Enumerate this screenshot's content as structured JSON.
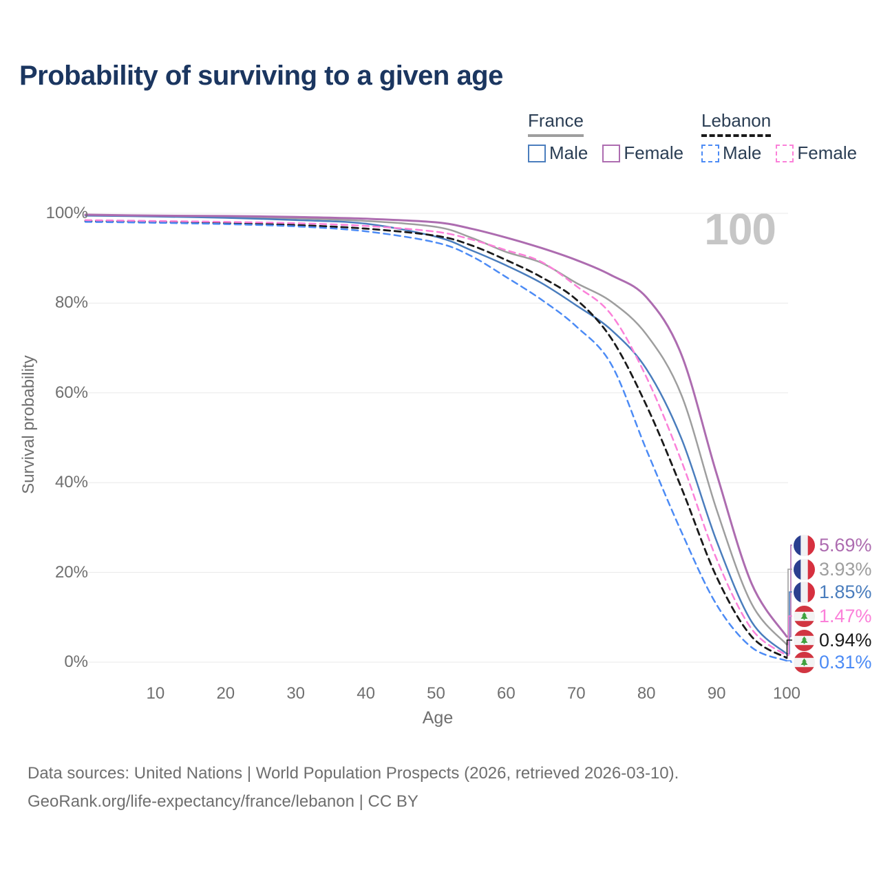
{
  "title": "Probability of surviving to a given age",
  "watermark_age": "100",
  "legend": {
    "groups": [
      {
        "country": "France",
        "line_style": "solid",
        "line_color": "#9e9e9e",
        "items": [
          {
            "label": "Male",
            "color": "#4a7dbd",
            "style": "solid"
          },
          {
            "label": "Female",
            "color": "#ad6cb0",
            "style": "solid"
          }
        ]
      },
      {
        "country": "Lebanon",
        "line_style": "dashed",
        "line_color": "#1a1a1a",
        "items": [
          {
            "label": "Male",
            "color": "#4c8bf5",
            "style": "dashed"
          },
          {
            "label": "Female",
            "color": "#fb80d9",
            "style": "dashed"
          }
        ]
      }
    ]
  },
  "chart_data": {
    "type": "line",
    "title": "Probability of surviving to a given age",
    "xlabel": "Age",
    "ylabel": "Survival probability",
    "xlim": [
      0,
      100
    ],
    "ylim": [
      0,
      100
    ],
    "grid": "horizontal",
    "x_ticks": [
      10,
      20,
      30,
      40,
      50,
      60,
      70,
      80,
      90,
      100
    ],
    "y_ticks": [
      0,
      20,
      40,
      60,
      80,
      100
    ],
    "y_tick_suffix": "%",
    "ages": [
      0,
      10,
      20,
      30,
      40,
      50,
      55,
      60,
      65,
      70,
      75,
      80,
      85,
      90,
      95,
      100
    ],
    "series": [
      {
        "name": "France Both sexes",
        "country": "France",
        "sex": "Both",
        "style": "solid",
        "color": "#9e9e9e",
        "width": 2.5,
        "values": [
          99.6,
          99.4,
          99.2,
          98.9,
          98.3,
          97.0,
          94.6,
          91.4,
          89.0,
          84.5,
          80.3,
          73.0,
          59.5,
          34.0,
          13.0,
          3.93
        ],
        "end_label": "3.93%",
        "end_value": 3.93
      },
      {
        "name": "France Male",
        "country": "France",
        "sex": "Male",
        "style": "solid",
        "color": "#4a7dbd",
        "width": 2.5,
        "values": [
          99.5,
          99.3,
          99.0,
          98.5,
          97.7,
          94.8,
          91.8,
          88.4,
          84.5,
          79.5,
          74.0,
          65.3,
          49.8,
          27.0,
          9.0,
          1.85
        ],
        "end_label": "1.85%",
        "end_value": 1.85
      },
      {
        "name": "France Female",
        "country": "France",
        "sex": "Female",
        "style": "solid",
        "color": "#ad6cb0",
        "width": 3,
        "values": [
          99.7,
          99.5,
          99.4,
          99.2,
          98.8,
          98.0,
          96.6,
          94.6,
          92.3,
          89.6,
          86.2,
          81.3,
          68.5,
          42.0,
          17.5,
          5.69
        ],
        "end_label": "5.69%",
        "end_value": 5.69
      },
      {
        "name": "Lebanon Both sexes",
        "country": "Lebanon",
        "sex": "Both",
        "style": "dashed",
        "color": "#1a1a1a",
        "width": 2.8,
        "values": [
          98.3,
          98.1,
          97.8,
          97.4,
          96.6,
          95.0,
          92.9,
          89.6,
          85.8,
          80.8,
          72.1,
          57.2,
          38.8,
          19.0,
          5.7,
          0.94
        ],
        "end_label": "0.94%",
        "end_value": 0.94
      },
      {
        "name": "Lebanon Male",
        "country": "Lebanon",
        "sex": "Male",
        "style": "dashed",
        "color": "#4c8bf5",
        "width": 2.5,
        "values": [
          98.1,
          97.9,
          97.6,
          97.1,
          96.0,
          93.5,
          90.5,
          85.8,
          80.8,
          74.8,
          66.3,
          47.3,
          29.0,
          12.8,
          3.3,
          0.31
        ],
        "end_label": "0.31%",
        "end_value": 0.31
      },
      {
        "name": "Lebanon Female",
        "country": "Lebanon",
        "sex": "Female",
        "style": "dashed",
        "color": "#fb80d9",
        "width": 2.5,
        "values": [
          98.5,
          98.3,
          98.1,
          97.8,
          97.2,
          95.9,
          94.2,
          91.8,
          89.2,
          83.8,
          77.4,
          63.5,
          44.8,
          23.0,
          7.4,
          1.47
        ],
        "end_label": "1.47%",
        "end_value": 1.47
      }
    ]
  },
  "footer": {
    "line1": "Data sources: United Nations | World Population Prospects (2026, retrieved 2026-03-10).",
    "line2": "GeoRank.org/life-expectancy/france/lebanon | CC BY"
  },
  "colors": {
    "title": "#1b3660",
    "legend_text": "#2b3e54",
    "axis_text": "#6f6f6f",
    "grid": "#e8e8e8",
    "watermark": "#c6c6c6",
    "france_flag": {
      "blue": "#2b3f8f",
      "white": "#f1f1f3",
      "red": "#d6303f"
    },
    "lebanon_flag": {
      "red": "#d13541",
      "white": "#f3f3f3",
      "green": "#3ea13e"
    }
  }
}
